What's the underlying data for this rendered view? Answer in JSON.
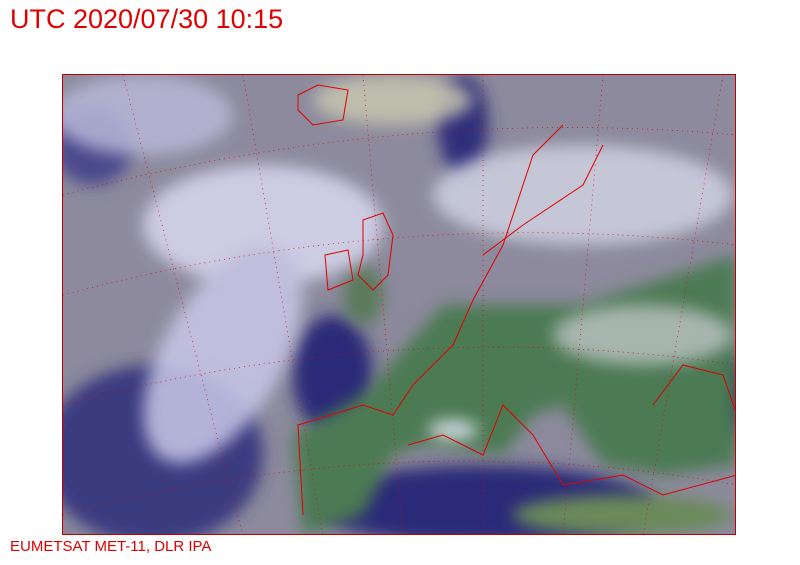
{
  "title": "UTC 2020/07/30 10:15",
  "credit": "EUMETSAT MET-11, DLR IPA",
  "image": {
    "type": "satellite-rgb-composite",
    "region": "Europe and North Atlantic",
    "overlay_color": "#e00000",
    "ocean_color": "#2b2a78",
    "land_color": "#4c7a52",
    "cloud_color": "#d8d8f0"
  }
}
